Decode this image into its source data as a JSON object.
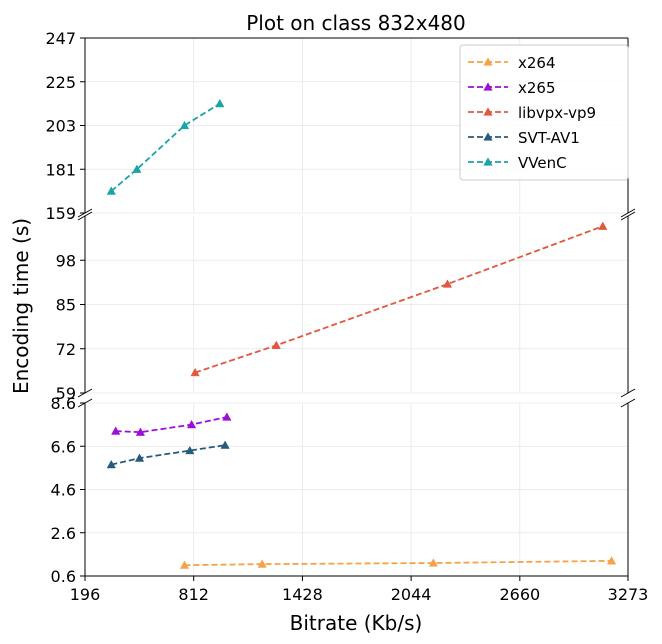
{
  "chart_data": {
    "type": "line",
    "title": "Plot on class 832x480",
    "xlabel": "Bitrate (Kb/s)",
    "ylabel": "Encoding time (s)",
    "xlim": [
      196,
      3273
    ],
    "xticks": [
      "196",
      "812",
      "1428",
      "2044",
      "2660",
      "3273"
    ],
    "grid": true,
    "legend_position": "top-right",
    "broken_y_axis": true,
    "y_panels": [
      {
        "ylim": [
          159,
          247
        ],
        "yticks": [
          "159",
          "181",
          "203",
          "225",
          "247"
        ]
      },
      {
        "ylim": [
          59,
          111
        ],
        "yticks": [
          "59",
          "72",
          "85",
          "98"
        ]
      },
      {
        "ylim": [
          0.6,
          8.6
        ],
        "yticks": [
          "0.6",
          "2.6",
          "4.6",
          "6.6",
          "8.6"
        ]
      }
    ],
    "series": [
      {
        "name": "x264",
        "color": "#f5a34b",
        "panel": 2,
        "x": [
          760,
          1200,
          2170,
          3180
        ],
        "y": [
          1.1,
          1.15,
          1.2,
          1.3
        ]
      },
      {
        "name": "x265",
        "color": "#9b0fd6",
        "panel": 2,
        "x": [
          370,
          510,
          800,
          1000
        ],
        "y": [
          7.3,
          7.25,
          7.6,
          7.95
        ]
      },
      {
        "name": "libvpx-vp9",
        "color": "#e2573d",
        "panel": 1,
        "x": [
          820,
          1280,
          2250,
          3130
        ],
        "y": [
          65,
          73,
          91,
          108
        ]
      },
      {
        "name": "SVT-AV1",
        "color": "#255b7e",
        "panel": 2,
        "x": [
          345,
          505,
          790,
          990
        ],
        "y": [
          5.75,
          6.05,
          6.4,
          6.65
        ]
      },
      {
        "name": "VVenC",
        "color": "#1aa3a8",
        "panel": 0,
        "x": [
          345,
          490,
          760,
          960
        ],
        "y": [
          170,
          181,
          203,
          214
        ]
      }
    ]
  }
}
